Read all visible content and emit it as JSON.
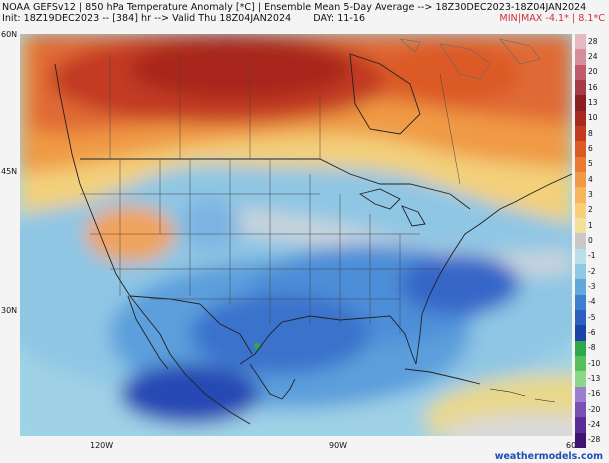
{
  "header": {
    "line1": "NOAA GEFSv12 | 850 hPa Temperature Anomaly [*C] | Ensemble Mean 5-Day Average --> 18Z30DEC2023-18Z04JAN2024",
    "line2": "Init: 18Z19DEC2023 -- [384] hr --> Valid Thu 18Z04JAN2024",
    "day": "DAY: 11-16",
    "minmax": "MIN|MAX -4.1* | 8.1*C"
  },
  "axes": {
    "lat_labels": [
      "60N",
      "45N",
      "30N"
    ],
    "lon_labels": [
      "120W",
      "90W",
      "60"
    ]
  },
  "colorbar": {
    "labels": [
      "28",
      "24",
      "20",
      "16",
      "13",
      "10",
      "8",
      "6",
      "5",
      "4",
      "3",
      "2",
      "1",
      "0",
      "-1",
      "-2",
      "-3",
      "-4",
      "-5",
      "-6",
      "-8",
      "-10",
      "-13",
      "-16",
      "-20",
      "-24",
      "-28"
    ],
    "colors": [
      "#e6b8bf",
      "#d68f9a",
      "#c05a6a",
      "#a53a49",
      "#8b1d24",
      "#a52a1f",
      "#c23a20",
      "#db5a25",
      "#e97a32",
      "#f09a45",
      "#f6b65c",
      "#f8d07a",
      "#f3e09a",
      "#c8c8c8",
      "#b8e0ec",
      "#8fc8e2",
      "#62a8dc",
      "#3c7fd0",
      "#2c5fc0",
      "#1c44a8",
      "#2fa84a",
      "#58c05a",
      "#8cd88a",
      "#9c80d0",
      "#7a50b4",
      "#5a2c98",
      "#3e1470"
    ]
  },
  "colors": {
    "land_outline": "#222222",
    "very_warm": "#a8281c",
    "warm": "#e06a35",
    "mild": "#f3b86a",
    "neutral": "#c8c8c8",
    "cool": "#9fd0e6",
    "cold": "#5b9fdc",
    "very_cold": "#3466c8",
    "coldest": "#2548b4"
  },
  "credit": "weathermodels.com"
}
